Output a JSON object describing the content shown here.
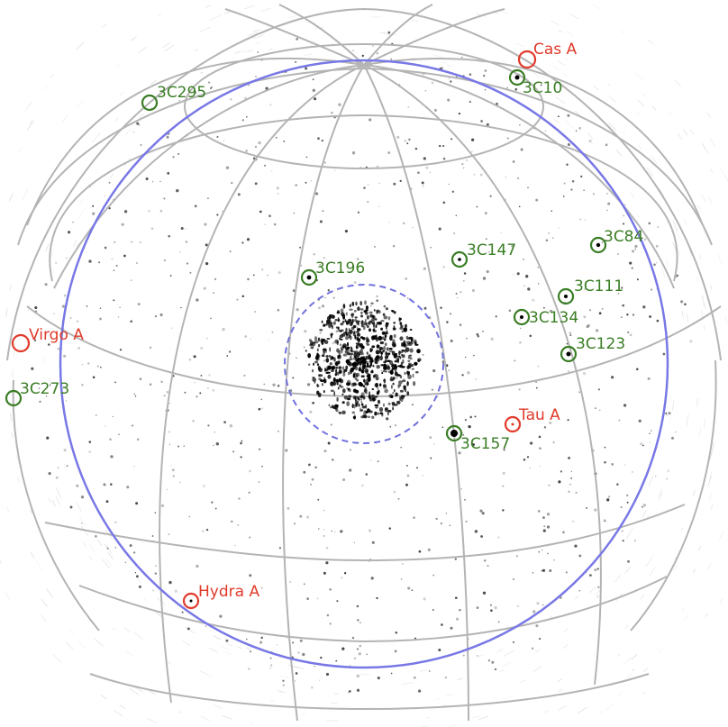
{
  "colors": {
    "background": "#ffffff",
    "grid_lines": "#b4b4b4",
    "horizon_circle": "#7878e6",
    "inner_circle_dashed": "#7070dd",
    "bright_sources": "#e03a2a",
    "calibrator_sources": "#3a7d24",
    "noise": "#000000"
  },
  "sources": [
    {
      "name": "Cas A",
      "category": "bright"
    },
    {
      "name": "3C10",
      "category": "calibrator"
    },
    {
      "name": "3C295",
      "category": "calibrator"
    },
    {
      "name": "3C84",
      "category": "calibrator"
    },
    {
      "name": "3C147",
      "category": "calibrator"
    },
    {
      "name": "3C196",
      "category": "calibrator"
    },
    {
      "name": "3C111",
      "category": "calibrator"
    },
    {
      "name": "3C134",
      "category": "calibrator"
    },
    {
      "name": "Virgo A",
      "category": "bright"
    },
    {
      "name": "3C123",
      "category": "calibrator"
    },
    {
      "name": "3C273",
      "category": "calibrator"
    },
    {
      "name": "Tau A",
      "category": "bright"
    },
    {
      "name": "3C157",
      "category": "calibrator"
    },
    {
      "name": "Hydra A",
      "category": "bright"
    }
  ]
}
